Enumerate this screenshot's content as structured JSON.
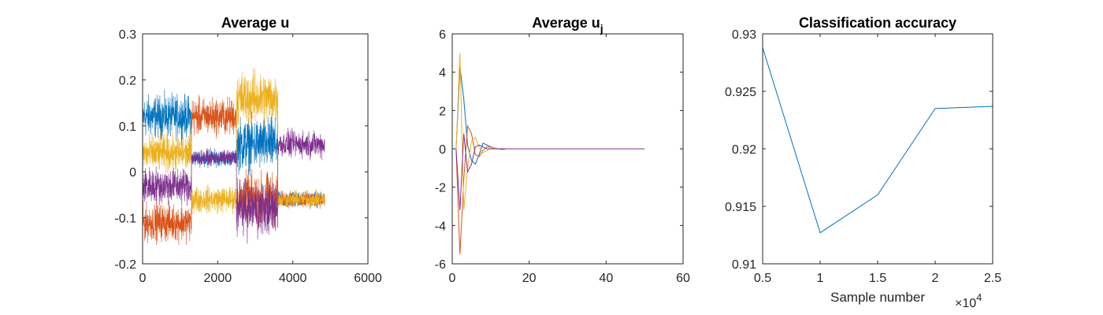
{
  "figure": {
    "background": "#ffffff"
  },
  "chart_data": [
    {
      "type": "line",
      "title": "Average u",
      "xlabel": "",
      "ylabel": "",
      "xlim": [
        0,
        6000
      ],
      "ylim": [
        -0.2,
        0.3
      ],
      "xticks": [
        "0",
        "2000",
        "4000",
        "6000"
      ],
      "yticks": [
        "-0.2",
        "-0.1",
        "0",
        "0.1",
        "0.2",
        "0.3"
      ],
      "grid": false,
      "note_series_style": "dense noisy traces",
      "series": [
        {
          "color": "#0072BD",
          "segments": [
            [
              0,
              1300,
              0.12,
              0.04
            ],
            [
              1300,
              2500,
              0.03,
              0.015
            ],
            [
              2500,
              3600,
              0.06,
              0.05
            ],
            [
              3600,
              4850,
              -0.06,
              0.015
            ]
          ]
        },
        {
          "color": "#D95319",
          "segments": [
            [
              0,
              1300,
              -0.11,
              0.035
            ],
            [
              1300,
              2500,
              0.12,
              0.035
            ],
            [
              2500,
              3600,
              -0.06,
              0.05
            ],
            [
              3600,
              4850,
              -0.06,
              0.015
            ]
          ]
        },
        {
          "color": "#EDB120",
          "segments": [
            [
              0,
              1300,
              0.04,
              0.035
            ],
            [
              1300,
              2500,
              -0.06,
              0.025
            ],
            [
              2500,
              3600,
              0.16,
              0.05
            ],
            [
              3600,
              4850,
              -0.06,
              0.015
            ]
          ]
        },
        {
          "color": "#7E2F8E",
          "segments": [
            [
              0,
              1300,
              -0.03,
              0.035
            ],
            [
              1300,
              2500,
              0.03,
              0.015
            ],
            [
              2500,
              3600,
              -0.08,
              0.05
            ],
            [
              3600,
              4850,
              0.06,
              0.025
            ]
          ]
        }
      ]
    },
    {
      "type": "line",
      "title": "Average u",
      "title_subscript": "j",
      "xlabel": "",
      "ylabel": "",
      "xlim": [
        0,
        60
      ],
      "ylim": [
        -6,
        6
      ],
      "xticks": [
        "0",
        "20",
        "40",
        "60"
      ],
      "yticks": [
        "-6",
        "-4",
        "-2",
        "0",
        "2",
        "4",
        "6"
      ],
      "grid": false,
      "x": [
        1,
        2,
        3,
        4,
        5,
        6,
        7,
        8,
        9,
        10,
        11,
        12,
        13,
        14,
        15,
        16,
        17,
        18,
        19,
        20,
        22,
        25,
        30,
        35,
        40,
        45,
        50
      ],
      "series": [
        {
          "color": "#0072BD",
          "values": [
            0,
            4.3,
            2.6,
            0.2,
            -0.6,
            -0.8,
            -0.3,
            0.3,
            0.2,
            0.1,
            0.05,
            0,
            -0.03,
            0,
            0,
            0,
            0,
            0,
            0,
            0,
            0,
            0,
            0,
            0,
            0,
            0,
            0
          ]
        },
        {
          "color": "#D95319",
          "values": [
            0,
            -5.5,
            -1.6,
            1.2,
            0.8,
            -0.3,
            -0.4,
            -0.1,
            0.1,
            0.1,
            0,
            0,
            0,
            0,
            0,
            0,
            0,
            0,
            0,
            0,
            0,
            0,
            0,
            0,
            0,
            0,
            0
          ]
        },
        {
          "color": "#EDB120",
          "values": [
            0,
            5.0,
            -3.2,
            -1.0,
            0.4,
            0.6,
            0.1,
            -0.2,
            -0.1,
            0.05,
            0.05,
            0,
            0,
            0,
            0,
            0,
            0,
            0,
            0,
            0,
            0,
            0,
            0,
            0,
            0,
            0,
            0
          ]
        },
        {
          "color": "#7E2F8E",
          "values": [
            0,
            -3.2,
            0.8,
            -1.2,
            -0.8,
            0.1,
            0.2,
            0.1,
            0,
            0,
            0,
            0,
            0,
            0,
            0,
            0,
            0,
            0,
            0,
            0,
            0,
            0,
            0,
            0,
            0,
            0,
            0
          ]
        }
      ]
    },
    {
      "type": "line",
      "title": "Classification accuracy",
      "xlabel": "Sample number",
      "x_exponent_label": "×10",
      "x_exponent": "4",
      "ylabel": "",
      "xlim": [
        0.5,
        2.5
      ],
      "ylim": [
        0.91,
        0.93
      ],
      "xticks": [
        "0.5",
        "1",
        "1.5",
        "2",
        "2.5"
      ],
      "yticks": [
        "0.91",
        "0.915",
        "0.92",
        "0.925",
        "0.93"
      ],
      "grid": false,
      "x": [
        0.5,
        1,
        1.5,
        2,
        2.5
      ],
      "series": [
        {
          "color": "#0072BD",
          "values": [
            0.9288,
            0.9127,
            0.916,
            0.9235,
            0.9237
          ]
        }
      ]
    }
  ]
}
